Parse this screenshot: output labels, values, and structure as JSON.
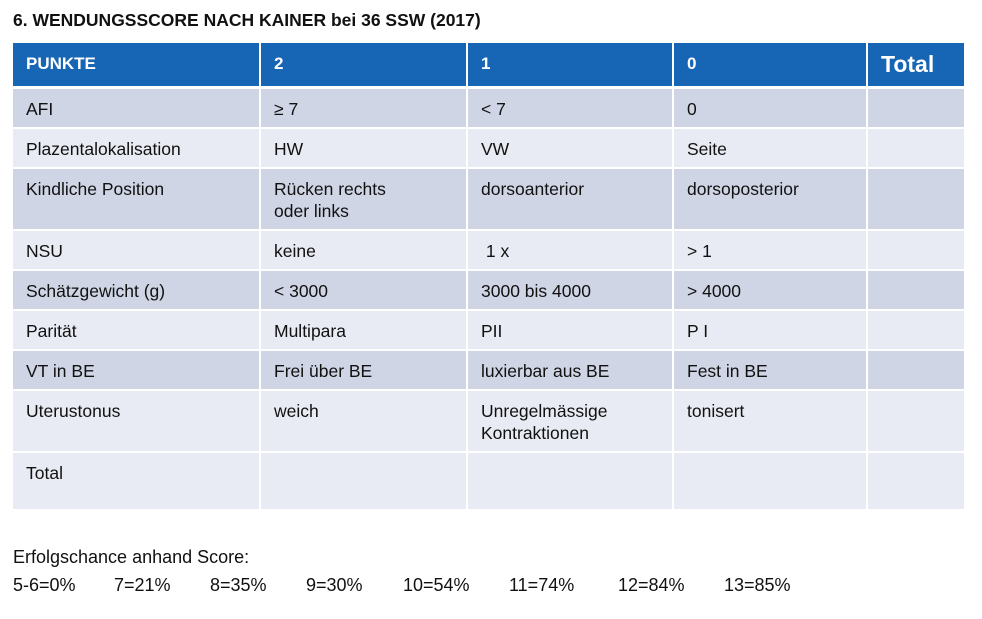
{
  "title": "6.  WENDUNGSSCORE NACH KAINER bei 36 SSW (2017)",
  "table": {
    "headers": [
      "PUNKTE",
      "2",
      "1",
      "0",
      "Total"
    ],
    "rows": [
      [
        "AFI",
        "≥ 7",
        "< 7",
        "0",
        ""
      ],
      [
        "Plazentalokalisation",
        "HW",
        "VW",
        "Seite",
        ""
      ],
      [
        "Kindliche Position",
        "Rücken rechts\noder links",
        "dorsoanterior",
        "dorsoposterior",
        ""
      ],
      [
        "NSU",
        "keine",
        " 1 x",
        "> 1",
        ""
      ],
      [
        "Schätzgewicht (g)",
        "< 3000",
        "3000 bis 4000",
        "> 4000",
        ""
      ],
      [
        "Parität",
        "Multipara",
        "PII",
        "P I",
        ""
      ],
      [
        "VT in BE",
        "Frei über BE",
        "luxierbar aus BE",
        "Fest in BE",
        ""
      ],
      [
        "Uterustonus",
        "weich",
        "Unregelmässige\nKontraktionen",
        "tonisert",
        ""
      ],
      [
        "Total",
        "",
        "",
        "",
        ""
      ]
    ]
  },
  "legend": {
    "label": "Erfolgschance anhand Score:",
    "values": [
      "5-6=0%",
      "7=21%",
      "8=35%",
      "9=30%",
      "10=54%",
      "11=74%",
      "12=84%",
      "13=85%"
    ]
  },
  "colors": {
    "header_bg": "#1765b5",
    "row_dark": "#cfd5e5",
    "row_light": "#e8ebf3"
  }
}
